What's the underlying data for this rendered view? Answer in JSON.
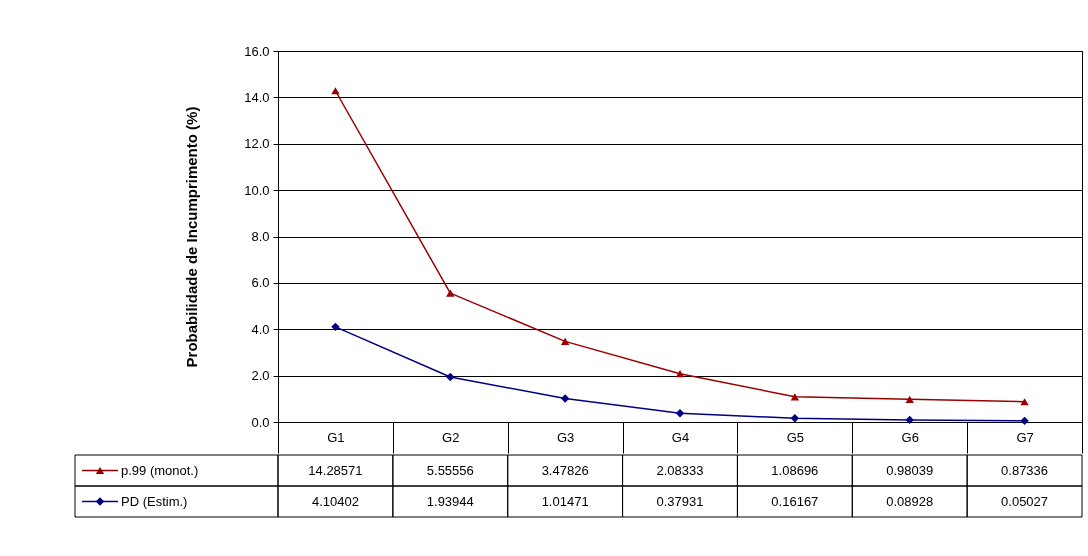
{
  "chart_data": {
    "type": "line",
    "ylabel": "Probabilidade de Incumprimento (%)",
    "categories": [
      "G1",
      "G2",
      "G3",
      "G4",
      "G5",
      "G6",
      "G7"
    ],
    "series": [
      {
        "name": "p.99 (monot.)",
        "color": "#990000",
        "marker": "triangle",
        "values": [
          14.28571,
          5.55556,
          3.47826,
          2.08333,
          1.08696,
          0.98039,
          0.87336
        ]
      },
      {
        "name": "PD (Estim.)",
        "color": "#000080",
        "marker": "diamond",
        "values": [
          4.10402,
          1.93944,
          1.01471,
          0.37931,
          0.16167,
          0.08928,
          0.05027
        ]
      }
    ],
    "ylim": [
      0,
      16
    ],
    "yticks": [
      {
        "value": 0,
        "label": "0.0"
      },
      {
        "value": 2,
        "label": "2.0"
      },
      {
        "value": 4,
        "label": "4.0"
      },
      {
        "value": 6,
        "label": "6.0"
      },
      {
        "value": 8,
        "label": "8.0"
      },
      {
        "value": 10,
        "label": "10.0"
      },
      {
        "value": 12,
        "label": "12.0"
      },
      {
        "value": 14,
        "label": "14.0"
      },
      {
        "value": 16,
        "label": "16.0"
      }
    ],
    "grid": "y",
    "legend": "bottom left",
    "data_labels": true
  }
}
